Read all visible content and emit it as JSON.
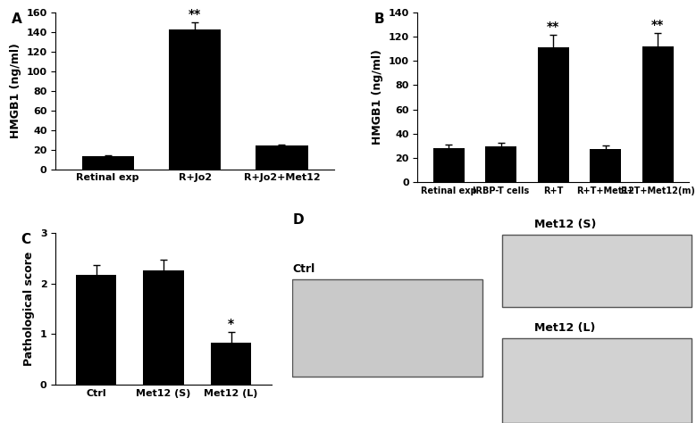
{
  "chart_data": [
    {
      "type": "bar",
      "title": "A",
      "y_label": "HMGB1 (ng/ml)",
      "categories": [
        "Retinal exp",
        "R+Jo2",
        "R+Jo2+Met12"
      ],
      "values": [
        13,
        143,
        24
      ],
      "errors": [
        1,
        7,
        1.5
      ],
      "annotations": [
        null,
        "**",
        null
      ],
      "color": "#000000",
      "ylim": [
        0,
        160
      ],
      "yticks": [
        0,
        20,
        40,
        60,
        80,
        100,
        120,
        140,
        160
      ],
      "grid": false
    },
    {
      "type": "bar",
      "title": "B",
      "y_label": "HMGB1 (ng/ml)",
      "categories": [
        "Retinal exp",
        "IRBP-T cells",
        "R+T",
        "R+T+Met12",
        "R+T+Met12(m)"
      ],
      "values": [
        28,
        29.5,
        111,
        27.5,
        112
      ],
      "errors": [
        3,
        3,
        11,
        2.5,
        11
      ],
      "annotations": [
        null,
        null,
        "**",
        null,
        "**"
      ],
      "color": "#000000",
      "ylim": [
        0,
        140
      ],
      "yticks": [
        0,
        20,
        40,
        60,
        80,
        100,
        120,
        140
      ],
      "grid": false
    },
    {
      "type": "bar",
      "title": "C",
      "y_label": "Pathological score",
      "categories": [
        "Ctrl",
        "Met12 (S)",
        "Met12 (L)"
      ],
      "values": [
        2.17,
        2.25,
        0.83
      ],
      "errors": [
        0.2,
        0.22,
        0.22
      ],
      "annotations": [
        null,
        null,
        "*"
      ],
      "color": "#000000",
      "ylim": [
        0,
        3
      ],
      "yticks": [
        0,
        1,
        2,
        3
      ],
      "grid": false
    },
    {
      "type": "image",
      "title": "D",
      "labels": [
        "Ctrl",
        "Met12 (S)",
        "Met12 (L)"
      ]
    }
  ]
}
